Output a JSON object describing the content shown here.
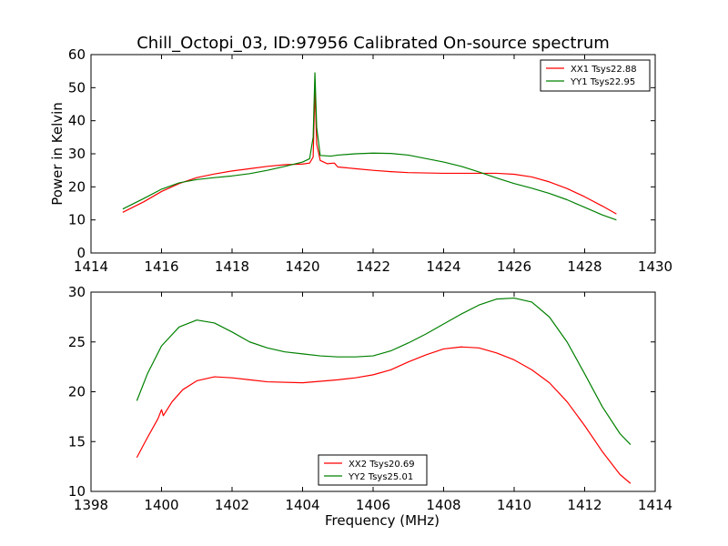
{
  "figure": {
    "title": "Chill_Octopi_03, ID:97956 Calibrated On-source spectrum"
  },
  "colors": {
    "xx": "#ff0000",
    "yy": "#008000",
    "axis": "#000000",
    "background": "#ffffff"
  },
  "chart_data": [
    {
      "type": "line",
      "title": "Chill_Octopi_03, ID:97956 Calibrated On-source spectrum",
      "xlabel": "",
      "ylabel": "Power in Kelvin",
      "xlim": [
        1414,
        1430
      ],
      "ylim": [
        0,
        60
      ],
      "xticks": [
        1414,
        1416,
        1418,
        1420,
        1422,
        1424,
        1426,
        1428,
        1430
      ],
      "yticks": [
        0,
        10,
        20,
        30,
        40,
        50,
        60
      ],
      "grid": false,
      "legend_position": "top-right",
      "series": [
        {
          "name": "XX1 Tsys22.88",
          "color": "#ff0000",
          "x": [
            1414.9,
            1415.5,
            1416.0,
            1416.5,
            1417.0,
            1417.5,
            1418.0,
            1418.5,
            1419.0,
            1419.5,
            1420.0,
            1420.2,
            1420.3,
            1420.35,
            1420.4,
            1420.5,
            1420.7,
            1420.9,
            1421.0,
            1421.5,
            1422.0,
            1422.5,
            1423.0,
            1424.0,
            1425.0,
            1425.5,
            1426.0,
            1426.5,
            1427.0,
            1427.5,
            1428.0,
            1428.5,
            1428.9
          ],
          "y": [
            12.3,
            15.5,
            18.6,
            21.0,
            22.8,
            23.9,
            24.8,
            25.5,
            26.2,
            26.7,
            26.9,
            27.2,
            29.0,
            50.0,
            33.0,
            28.0,
            27.0,
            27.2,
            26.0,
            25.5,
            25.0,
            24.6,
            24.3,
            24.1,
            24.1,
            24.1,
            23.8,
            23.0,
            21.5,
            19.5,
            17.0,
            14.2,
            11.8
          ]
        },
        {
          "name": "YY1 Tsys22.95",
          "color": "#008000",
          "x": [
            1414.9,
            1415.5,
            1416.0,
            1416.5,
            1417.0,
            1417.5,
            1418.0,
            1418.5,
            1419.0,
            1419.5,
            1420.0,
            1420.2,
            1420.3,
            1420.35,
            1420.4,
            1420.5,
            1420.8,
            1421.0,
            1421.5,
            1422.0,
            1422.5,
            1423.0,
            1424.0,
            1424.5,
            1425.0,
            1425.5,
            1426.0,
            1426.5,
            1427.0,
            1427.5,
            1428.0,
            1428.5,
            1428.9
          ],
          "y": [
            13.3,
            16.5,
            19.3,
            21.2,
            22.2,
            22.8,
            23.3,
            24.0,
            25.0,
            26.2,
            27.5,
            28.5,
            35.0,
            54.5,
            38.0,
            29.5,
            29.3,
            29.6,
            30.0,
            30.2,
            30.1,
            29.6,
            27.5,
            26.2,
            24.5,
            22.7,
            21.0,
            19.6,
            18.0,
            16.1,
            13.8,
            11.5,
            10.0
          ]
        }
      ]
    },
    {
      "type": "line",
      "title": "",
      "xlabel": "Frequency (MHz)",
      "ylabel": "",
      "xlim": [
        1398,
        1414
      ],
      "ylim": [
        10,
        30
      ],
      "xticks": [
        1398,
        1400,
        1402,
        1404,
        1406,
        1408,
        1410,
        1412,
        1414
      ],
      "yticks": [
        10,
        15,
        20,
        25,
        30
      ],
      "grid": false,
      "legend_position": "bottom-center",
      "series": [
        {
          "name": "XX2 Tsys20.69",
          "color": "#ff0000",
          "x": [
            1399.3,
            1399.6,
            1399.9,
            1400.0,
            1400.05,
            1400.3,
            1400.6,
            1401.0,
            1401.5,
            1402.0,
            1402.5,
            1403.0,
            1404.0,
            1405.0,
            1405.5,
            1406.0,
            1406.5,
            1407.0,
            1407.5,
            1408.0,
            1408.5,
            1409.0,
            1409.5,
            1410.0,
            1410.5,
            1411.0,
            1411.5,
            1412.0,
            1412.5,
            1413.0,
            1413.3
          ],
          "y": [
            13.4,
            15.4,
            17.3,
            18.2,
            17.6,
            19.0,
            20.2,
            21.1,
            21.5,
            21.4,
            21.2,
            21.0,
            20.9,
            21.2,
            21.4,
            21.7,
            22.2,
            23.0,
            23.7,
            24.3,
            24.5,
            24.4,
            23.9,
            23.2,
            22.2,
            20.9,
            19.0,
            16.6,
            14.0,
            11.7,
            10.8
          ]
        },
        {
          "name": "YY2 Tsys25.01",
          "color": "#008000",
          "x": [
            1399.3,
            1399.6,
            1400.0,
            1400.5,
            1401.0,
            1401.5,
            1402.0,
            1402.5,
            1403.0,
            1403.5,
            1404.0,
            1404.5,
            1405.0,
            1405.5,
            1406.0,
            1406.5,
            1407.0,
            1407.5,
            1408.0,
            1408.5,
            1409.0,
            1409.5,
            1410.0,
            1410.5,
            1411.0,
            1411.5,
            1412.0,
            1412.5,
            1413.0,
            1413.3
          ],
          "y": [
            19.1,
            21.8,
            24.6,
            26.5,
            27.2,
            26.9,
            26.0,
            25.0,
            24.4,
            24.0,
            23.8,
            23.6,
            23.5,
            23.5,
            23.6,
            24.1,
            24.9,
            25.8,
            26.8,
            27.8,
            28.7,
            29.3,
            29.4,
            29.0,
            27.5,
            25.0,
            21.8,
            18.5,
            15.8,
            14.7
          ]
        }
      ]
    }
  ]
}
